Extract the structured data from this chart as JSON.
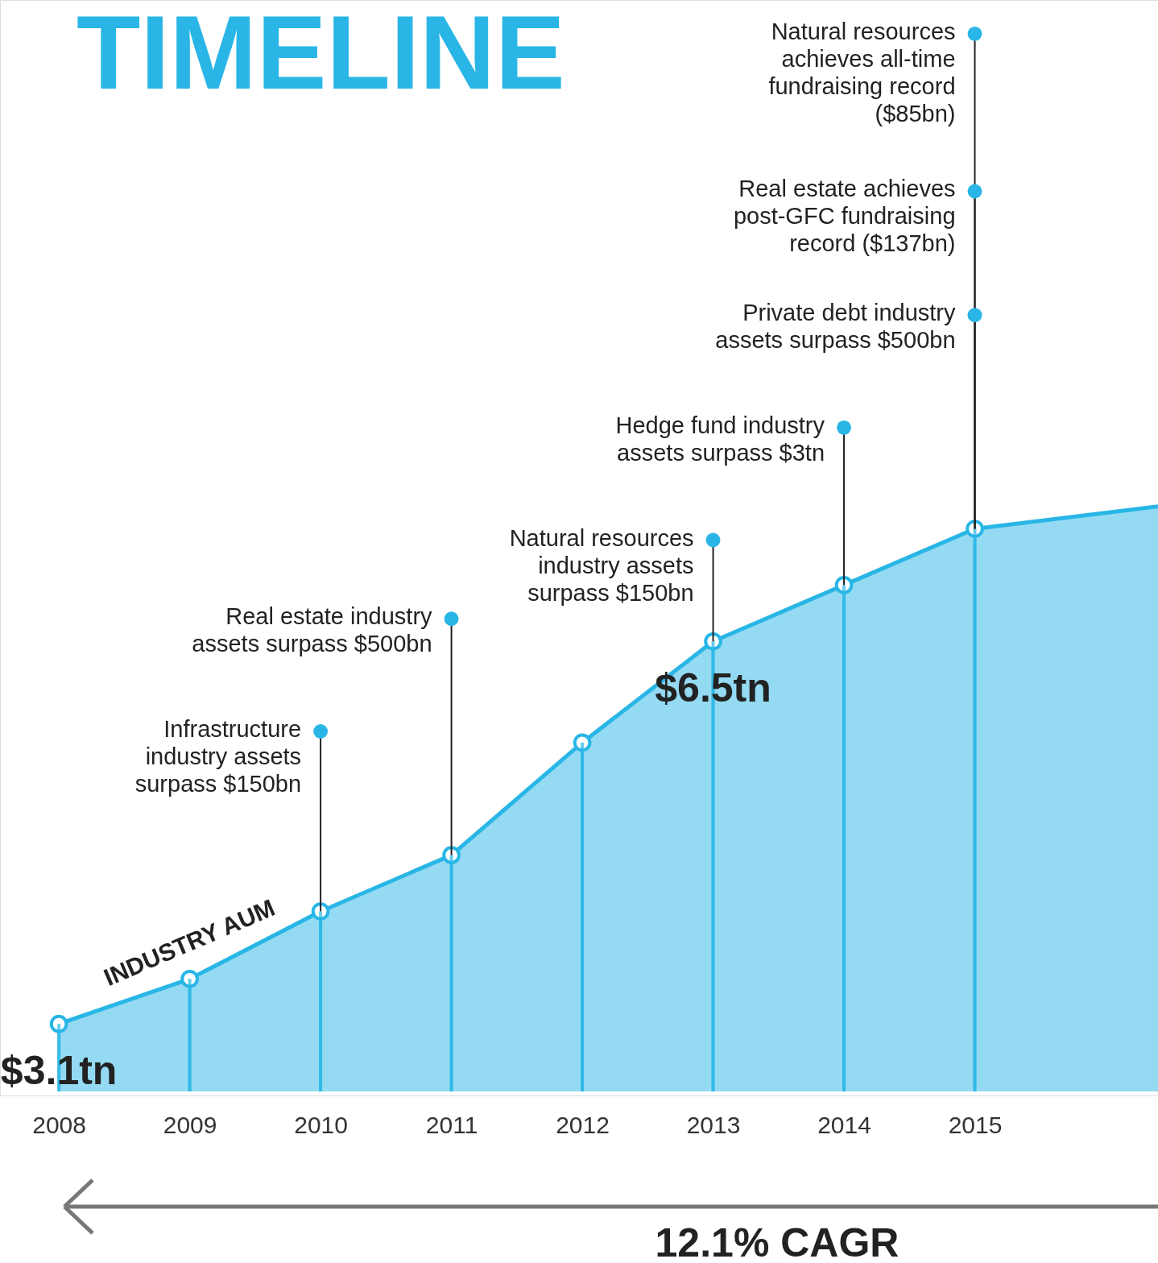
{
  "chart_data": {
    "type": "area",
    "title": "TIMELINE",
    "x": [
      2008,
      2009,
      2010,
      2011,
      2012,
      2013,
      2014,
      2015,
      2016.4
    ],
    "xlim": [
      2007.55,
      2016.4
    ],
    "xticks": [
      2008,
      2009,
      2010,
      2011,
      2012,
      2013,
      2014,
      2015
    ],
    "ylim": [
      2.5,
      12.2
    ],
    "tick_labels": "x",
    "grid": "x",
    "series": [
      {
        "color": "#29b6e6",
        "values": [
          3.1,
          3.5,
          4.1,
          4.6,
          5.6,
          6.5,
          7.0,
          7.5,
          7.7
        ],
        "value_labels": [
          "$3.1tn",
          null,
          null,
          null,
          null,
          "$6.5tn",
          null,
          null,
          null
        ]
      },
      {
        "type": "lollipop",
        "color": "#29b6e6",
        "x": [
          2008,
          2009,
          2010,
          2011,
          2012,
          2013,
          2014,
          2015
        ],
        "values": [
          3.1,
          3.5,
          4.1,
          4.6,
          5.6,
          6.5,
          7.0,
          7.5
        ]
      }
    ],
    "annotations": [
      "INDUSTRY AUM",
      "12.1% CAGR",
      {
        "text": "Infrastructure industry assets surpass $150bn",
        "x": 2010,
        "y": 5.7
      },
      {
        "text": "Real estate industry assets surpass $500bn",
        "x": 2011,
        "y": 6.7
      },
      {
        "text": "Natural resources industry assets surpass $150bn",
        "x": 2013,
        "y": 7.4
      },
      {
        "text": "Hedge fund industry assets surpass $3tn",
        "x": 2014,
        "y": 8.4
      },
      {
        "text": "Private debt industry assets surpass $500bn",
        "x": 2015,
        "y": 9.4
      },
      {
        "text": "Real estate achieves post-GFC fundraising record ($137bn)",
        "x": 2015,
        "y": 10.5
      },
      {
        "text": "Natural resources achieves all-time fundraising record ($85bn)",
        "x": 2015,
        "y": 11.9
      }
    ]
  }
}
